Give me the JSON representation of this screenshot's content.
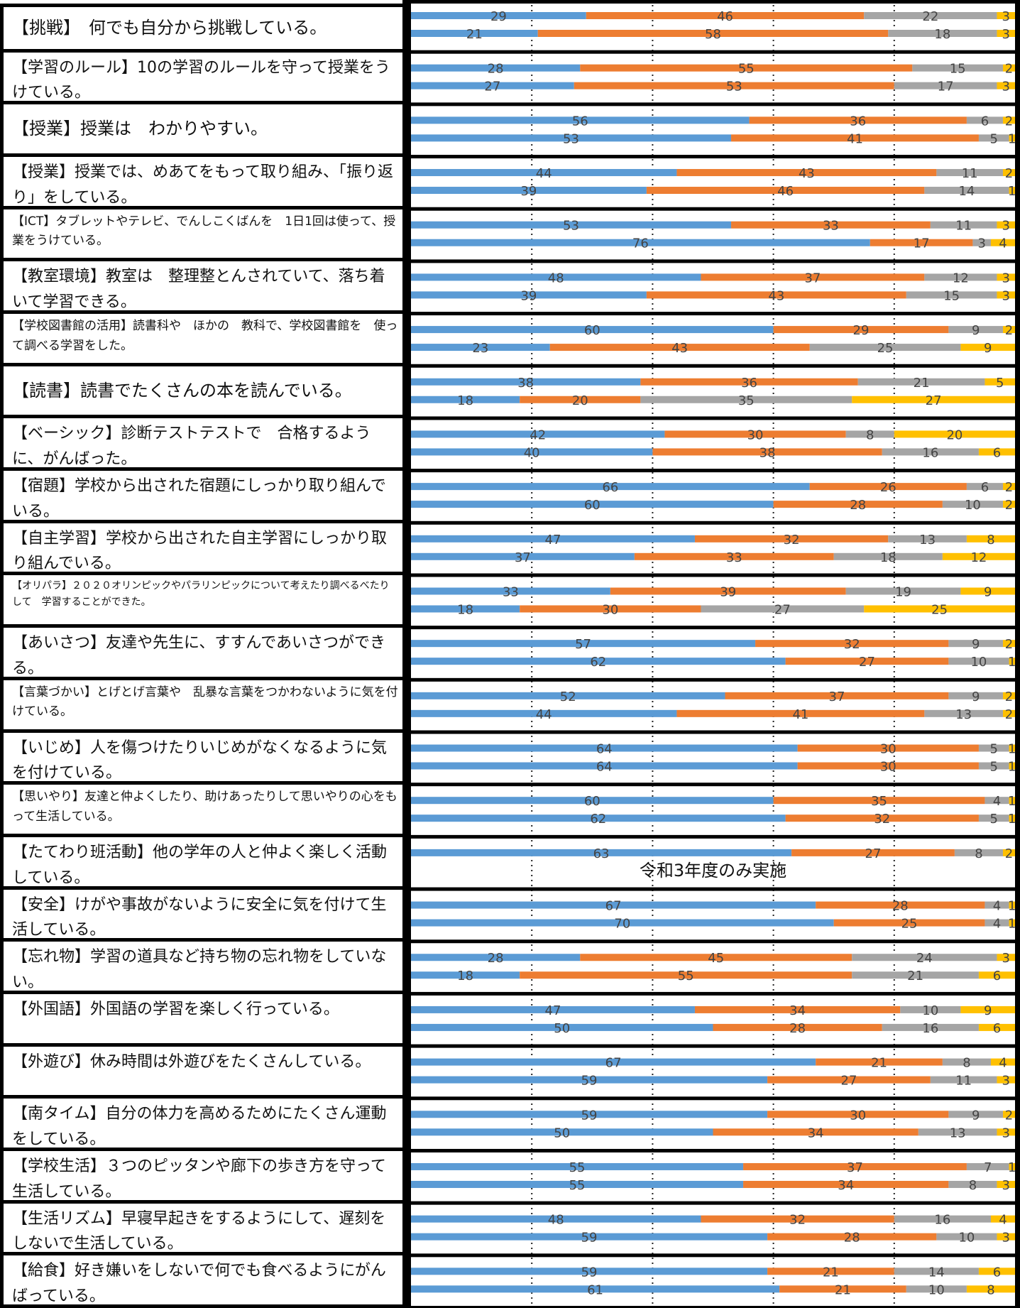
{
  "chart_data": {
    "type": "bar",
    "stacked": true,
    "xlim": [
      0,
      100
    ],
    "colors": [
      "#5B9BD5",
      "#ED7D31",
      "#A5A5A5",
      "#FFC000"
    ],
    "rows": [
      {
        "label": "【挑戦】　何でも自分から挑戦している。",
        "values": [
          [
            29,
            46,
            22,
            3
          ],
          [
            21,
            58,
            18,
            3
          ]
        ]
      },
      {
        "label": "【学習のルール】10の学習のルールを守って授業をうけている。",
        "values": [
          [
            28,
            55,
            15,
            2
          ],
          [
            27,
            53,
            17,
            3
          ]
        ]
      },
      {
        "label": "【授業】授業は　わかりやすい。",
        "values": [
          [
            56,
            36,
            6,
            2
          ],
          [
            53,
            41,
            5,
            1
          ]
        ]
      },
      {
        "label": "【授業】授業では、めあてをもって取り組み、「振り返り」をしている。",
        "values": [
          [
            44,
            43,
            11,
            2
          ],
          [
            39,
            46,
            14,
            1
          ]
        ]
      },
      {
        "label": "【ICT】タブレットやテレビ、でんしこくばんを　1日1回は使って、授業をうけている。",
        "values": [
          [
            53,
            33,
            11,
            3
          ],
          [
            76,
            17,
            3,
            4
          ]
        ]
      },
      {
        "label": "【教室環境】教室は　整理整とんされていて、落ち着いて学習できる。",
        "values": [
          [
            48,
            37,
            12,
            3
          ],
          [
            39,
            43,
            15,
            3
          ]
        ]
      },
      {
        "label": "【学校図書館の活用】読書科や　ほかの　教科で、学校図書館を　使って調べる学習をした。",
        "values": [
          [
            60,
            29,
            9,
            2
          ],
          [
            23,
            43,
            25,
            9
          ]
        ]
      },
      {
        "label": "【読書】読書でたくさんの本を読んでいる。",
        "values": [
          [
            38,
            36,
            21,
            5
          ],
          [
            18,
            20,
            35,
            27
          ]
        ]
      },
      {
        "label": "【ベーシック】診断テストテストで　合格するように、がんばった。",
        "values": [
          [
            42,
            30,
            8,
            20
          ],
          [
            40,
            38,
            16,
            6
          ]
        ]
      },
      {
        "label": "【宿題】学校から出された宿題にしっかり取り組んでいる。",
        "values": [
          [
            66,
            26,
            6,
            2
          ],
          [
            60,
            28,
            10,
            2
          ]
        ]
      },
      {
        "label": "【自主学習】学校から出された自主学習にしっかり取り組んでいる。",
        "values": [
          [
            47,
            32,
            13,
            8
          ],
          [
            37,
            33,
            18,
            12
          ]
        ]
      },
      {
        "label": "【オリパラ】２０２０オリンピックやパラリンピックについて考えたり調べるべたりして　学習することができた。",
        "values": [
          [
            33,
            39,
            19,
            9
          ],
          [
            18,
            30,
            27,
            25
          ]
        ]
      },
      {
        "label": "【あいさつ】友達や先生に、すすんであいさつができる。",
        "values": [
          [
            57,
            32,
            9,
            2
          ],
          [
            62,
            27,
            10,
            1
          ]
        ]
      },
      {
        "label": "【言葉づかい】とげとげ言葉や　乱暴な言葉をつかわないように気を付けている。",
        "values": [
          [
            52,
            37,
            9,
            2
          ],
          [
            44,
            41,
            13,
            2
          ]
        ]
      },
      {
        "label": "【いじめ】人を傷つけたりいじめがなくなるように気を付けている。",
        "values": [
          [
            64,
            30,
            5,
            1
          ],
          [
            64,
            30,
            5,
            1
          ]
        ]
      },
      {
        "label": "【思いやり】友達と仲よくしたり、助けあったりして思いやりの心をもって生活している。",
        "values": [
          [
            60,
            35,
            4,
            1
          ],
          [
            62,
            32,
            5,
            1
          ]
        ]
      },
      {
        "label": "【たてわり班活動】他の学年の人と仲よく楽しく活動している。",
        "values": [
          [
            63,
            27,
            8,
            2
          ]
        ],
        "note": "令和3年度のみ実施"
      },
      {
        "label": "【安全】けがや事故がないように安全に気を付けて生活している。",
        "values": [
          [
            67,
            28,
            4,
            1
          ],
          [
            70,
            25,
            4,
            1
          ]
        ]
      },
      {
        "label": "【忘れ物】学習の道具など持ち物の忘れ物をしていない。",
        "values": [
          [
            28,
            45,
            24,
            3
          ],
          [
            18,
            55,
            21,
            6
          ]
        ]
      },
      {
        "label": "【外国語】外国語の学習を楽しく行っている。",
        "values": [
          [
            47,
            34,
            10,
            9
          ],
          [
            50,
            28,
            16,
            6
          ]
        ]
      },
      {
        "label": "【外遊び】休み時間は外遊びをたくさんしている。",
        "values": [
          [
            67,
            21,
            8,
            4
          ],
          [
            59,
            27,
            11,
            3
          ]
        ]
      },
      {
        "label": "【南タイム】自分の体力を高めるためにたくさん運動をしている。",
        "values": [
          [
            59,
            30,
            9,
            2
          ],
          [
            50,
            34,
            13,
            3
          ]
        ]
      },
      {
        "label": "【学校生活】３つのピッタンや廊下の歩き方を守って生活している。",
        "values": [
          [
            55,
            37,
            7,
            1
          ],
          [
            55,
            34,
            8,
            3
          ]
        ]
      },
      {
        "label": "【生活リズム】早寝早起きをするようにして、遅刻をしないで生活している。",
        "values": [
          [
            48,
            32,
            16,
            4
          ],
          [
            59,
            28,
            10,
            3
          ]
        ]
      },
      {
        "label": "【給食】好き嫌いをしないで何でも食べるようにがんばっている。",
        "values": [
          [
            59,
            21,
            14,
            6
          ],
          [
            61,
            21,
            10,
            8
          ]
        ]
      }
    ]
  }
}
